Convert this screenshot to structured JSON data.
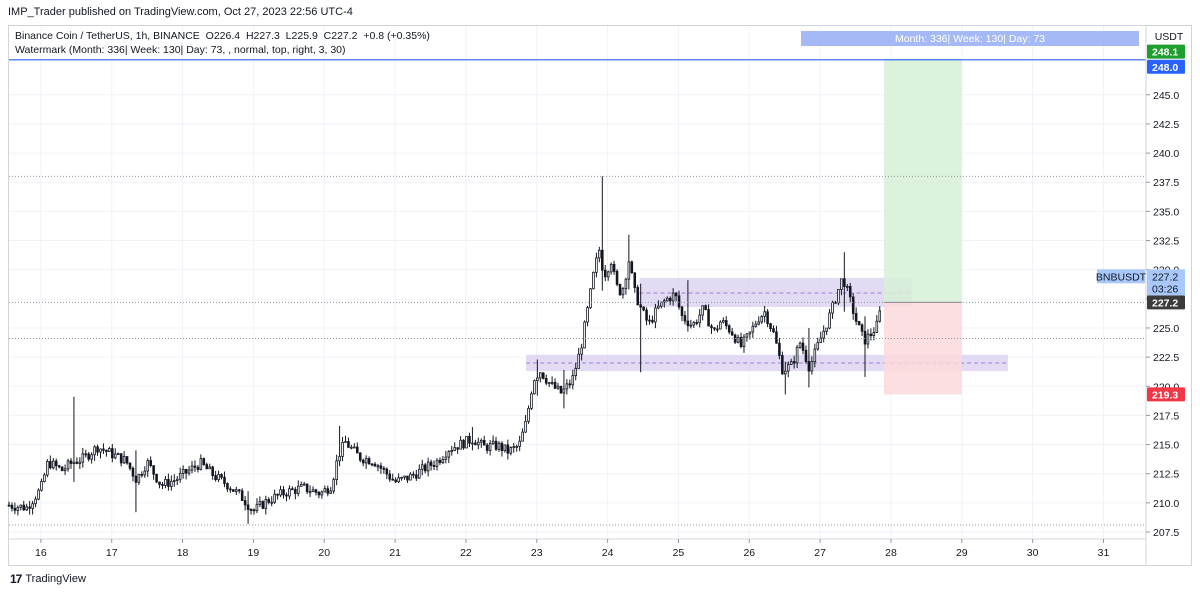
{
  "header": {
    "publisher_line": "IMP_Trader published on TradingView.com, Oct 27, 2023 22:56 UTC-4",
    "symbol_title": "Binance Coin / TetherUS, 1h, BINANCE",
    "ohlc": {
      "O": "226.4",
      "H": "227.3",
      "L": "225.9",
      "C": "227.2",
      "change": "+0.8 (+0.35%)"
    },
    "o_label": "O",
    "h_label": "H",
    "l_label": "L",
    "c_label": "C",
    "watermark_line": "Watermark (Month: 336| Week: 130| Day: 73, , normal, top, right, 3, 30)"
  },
  "watermark_box": {
    "text": "Month: 336| Week: 130| Day: 73",
    "color": "#8fa7f5"
  },
  "footer": {
    "brand": "TradingView",
    "logo_glyph": "17"
  },
  "colors": {
    "up": "#131722",
    "down": "#131722",
    "zone": "#d9cdf0",
    "profit": "#d7f0d6",
    "loss": "#fbd9db",
    "target_tag": "#1e9e2c",
    "level_tag": "#2962ff",
    "stop_tag": "#f23645",
    "price_tag": "#3b3b3b",
    "symbol_tag": "#a8c7fa"
  },
  "chart_data": {
    "type": "candlestick",
    "symbol": "BNBUSDT",
    "currency": "USDT",
    "interval": "1h",
    "x_ticks": [
      "16",
      "17",
      "18",
      "19",
      "20",
      "21",
      "22",
      "23",
      "24",
      "25",
      "26",
      "27",
      "28",
      "29",
      "30",
      "31"
    ],
    "x_range_days": [
      15.55,
      31.6
    ],
    "y_ticks": [
      207.5,
      210.0,
      212.5,
      215.0,
      217.5,
      220.0,
      222.5,
      225.0,
      227.5,
      230.0,
      232.5,
      235.0,
      237.5,
      240.0,
      242.5,
      245.0
    ],
    "ylim": [
      206.9,
      250.9
    ],
    "horizontal_line": 248.0,
    "dotted_levels": [
      238.0,
      224.1,
      208.1
    ],
    "zones": [
      {
        "day_from": 24.45,
        "day_to": 28.3,
        "low": 226.8,
        "high": 229.3,
        "mid": 228.0
      },
      {
        "day_from": 22.85,
        "day_to": 29.65,
        "low": 221.3,
        "high": 222.7,
        "mid": 222.0
      }
    ],
    "position": {
      "day_from": 27.9,
      "day_to": 29.0,
      "entry": 227.2,
      "target": 248.1,
      "stop": 219.3
    },
    "price_tags": [
      {
        "label": "248.1",
        "value": 248.1,
        "kind": "target_tag"
      },
      {
        "label": "248.0",
        "value": 248.0,
        "kind": "level_tag"
      },
      {
        "label": "227.2",
        "value": 227.2,
        "kind": "price_tag"
      },
      {
        "label": "219.3",
        "value": 219.3,
        "kind": "stop_tag"
      }
    ],
    "last_price": {
      "symbol": "BNBUSDT",
      "value": "227.2",
      "countdown": "03:26"
    },
    "close_path": [
      [
        15.55,
        209.8
      ],
      [
        15.8,
        209.6
      ],
      [
        16.0,
        211.2
      ],
      [
        16.1,
        213.5
      ],
      [
        16.3,
        212.8
      ],
      [
        16.45,
        213.5
      ],
      [
        16.6,
        213.8
      ],
      [
        16.8,
        214.8
      ],
      [
        17.0,
        214.2
      ],
      [
        17.2,
        213.6
      ],
      [
        17.35,
        212.0
      ],
      [
        17.5,
        213.5
      ],
      [
        17.7,
        211.5
      ],
      [
        17.9,
        212.0
      ],
      [
        18.1,
        212.8
      ],
      [
        18.25,
        213.4
      ],
      [
        18.45,
        212.3
      ],
      [
        18.65,
        211.5
      ],
      [
        18.85,
        210.4
      ],
      [
        19.0,
        209.3
      ],
      [
        19.2,
        210.2
      ],
      [
        19.45,
        210.9
      ],
      [
        19.7,
        211.3
      ],
      [
        19.95,
        210.8
      ],
      [
        20.1,
        211.5
      ],
      [
        20.2,
        214.1
      ],
      [
        20.3,
        215.2
      ],
      [
        20.5,
        213.9
      ],
      [
        20.7,
        213.6
      ],
      [
        20.85,
        212.7
      ],
      [
        21.0,
        211.8
      ],
      [
        21.2,
        212.2
      ],
      [
        21.4,
        212.9
      ],
      [
        21.6,
        213.6
      ],
      [
        21.75,
        214.6
      ],
      [
        21.95,
        215.1
      ],
      [
        22.1,
        215.5
      ],
      [
        22.25,
        214.8
      ],
      [
        22.45,
        214.9
      ],
      [
        22.6,
        214.4
      ],
      [
        22.75,
        214.9
      ],
      [
        22.85,
        216.9
      ],
      [
        22.95,
        220.6
      ],
      [
        23.05,
        221.3
      ],
      [
        23.2,
        220.1
      ],
      [
        23.35,
        219.4
      ],
      [
        23.5,
        220.5
      ],
      [
        23.62,
        223.2
      ],
      [
        23.72,
        226.6
      ],
      [
        23.8,
        229.5
      ],
      [
        23.88,
        231.8
      ],
      [
        23.95,
        229.5
      ],
      [
        24.05,
        230.8
      ],
      [
        24.12,
        228.6
      ],
      [
        24.2,
        228.0
      ],
      [
        24.3,
        230.8
      ],
      [
        24.38,
        228.1
      ],
      [
        24.48,
        226.5
      ],
      [
        24.58,
        225.3
      ],
      [
        24.7,
        226.6
      ],
      [
        24.82,
        227.4
      ],
      [
        24.95,
        227.9
      ],
      [
        25.05,
        226.0
      ],
      [
        25.2,
        225.2
      ],
      [
        25.35,
        226.6
      ],
      [
        25.5,
        224.6
      ],
      [
        25.6,
        225.6
      ],
      [
        25.75,
        224.7
      ],
      [
        25.88,
        223.4
      ],
      [
        26.0,
        224.4
      ],
      [
        26.12,
        225.8
      ],
      [
        26.22,
        226.4
      ],
      [
        26.35,
        224.4
      ],
      [
        26.47,
        221.4
      ],
      [
        26.6,
        221.8
      ],
      [
        26.72,
        223.8
      ],
      [
        26.85,
        221.6
      ],
      [
        27.0,
        224.0
      ],
      [
        27.12,
        225.8
      ],
      [
        27.22,
        227.6
      ],
      [
        27.32,
        229.4
      ],
      [
        27.42,
        227.4
      ],
      [
        27.52,
        225.4
      ],
      [
        27.62,
        223.9
      ],
      [
        27.72,
        224.5
      ],
      [
        27.8,
        225.2
      ],
      [
        27.88,
        227.2
      ]
    ],
    "spikes": [
      {
        "day": 16.45,
        "high": 219.1,
        "low": 211.8
      },
      {
        "day": 17.35,
        "high": 214.5,
        "low": 209.2
      },
      {
        "day": 18.92,
        "high": 211.0,
        "low": 208.2
      },
      {
        "day": 20.22,
        "high": 216.6,
        "low": 213.5
      },
      {
        "day": 22.1,
        "high": 216.5,
        "low": 214.5
      },
      {
        "day": 23.0,
        "high": 222.3,
        "low": 219.2
      },
      {
        "day": 23.38,
        "high": 221.4,
        "low": 218.1
      },
      {
        "day": 23.92,
        "high": 238.0,
        "low": 228.2
      },
      {
        "day": 24.3,
        "high": 233.0,
        "low": 228.3
      },
      {
        "day": 24.45,
        "high": 228.8,
        "low": 221.2
      },
      {
        "day": 25.15,
        "high": 229.1,
        "low": 225.0
      },
      {
        "day": 26.52,
        "high": 222.1,
        "low": 219.3
      },
      {
        "day": 26.85,
        "high": 225.0,
        "low": 219.9
      },
      {
        "day": 27.35,
        "high": 231.5,
        "low": 226.4
      },
      {
        "day": 27.62,
        "high": 226.0,
        "low": 220.8
      }
    ]
  }
}
